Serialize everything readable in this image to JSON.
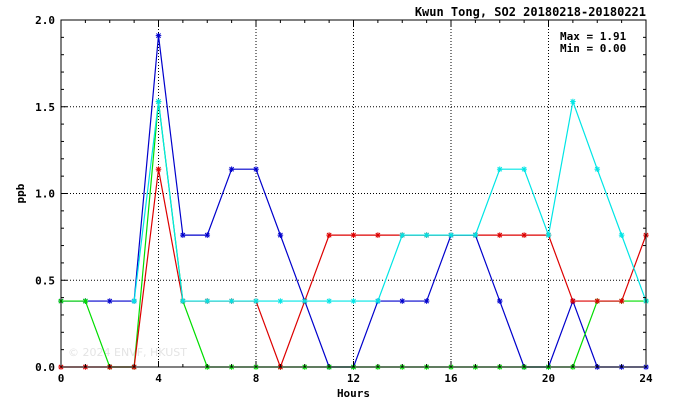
{
  "chart_data": {
    "type": "line",
    "title": "Kwun Tong, SO2 20180218-20180221",
    "xlabel": "Hours",
    "ylabel": "ppb",
    "xlim": [
      0,
      24
    ],
    "ylim": [
      0,
      2.0
    ],
    "xticks": [
      "0",
      "4",
      "8",
      "12",
      "16",
      "20",
      "24"
    ],
    "yticks": [
      "0.0",
      "0.5",
      "1.0",
      "1.5",
      "2.0"
    ],
    "grid": true,
    "stats": {
      "max": "Max = 1.91",
      "min": "Min = 0.00"
    },
    "watermark": "© 2024 ENVF, HKUST",
    "x": [
      0,
      1,
      2,
      3,
      4,
      5,
      6,
      7,
      8,
      9,
      10,
      11,
      12,
      13,
      14,
      15,
      16,
      17,
      18,
      19,
      20,
      21,
      22,
      23,
      24
    ],
    "series": [
      {
        "color": "#0000cc",
        "values": [
          0.38,
          0.38,
          0.38,
          0.38,
          1.91,
          0.76,
          0.76,
          1.14,
          1.14,
          0.76,
          0.38,
          0.0,
          0.0,
          0.38,
          0.38,
          0.38,
          0.76,
          0.76,
          0.38,
          0.0,
          0.0,
          0.38,
          0.0,
          0.0,
          0.0
        ]
      },
      {
        "color": "#00dd00",
        "values": [
          0.38,
          0.38,
          0.0,
          0.0,
          1.53,
          0.38,
          0.0,
          0.0,
          0.0,
          0.0,
          0.0,
          0.0,
          0.0,
          0.0,
          0.0,
          0.0,
          0.0,
          0.0,
          0.0,
          0.0,
          0.0,
          0.0,
          0.38,
          0.38,
          0.38
        ]
      },
      {
        "color": "#dd0000",
        "values": [
          0.0,
          0.0,
          0.0,
          0.0,
          1.14,
          0.38,
          0.38,
          0.38,
          0.38,
          0.0,
          0.38,
          0.76,
          0.76,
          0.76,
          0.76,
          0.76,
          0.76,
          0.76,
          0.76,
          0.76,
          0.76,
          0.38,
          0.38,
          0.38,
          0.76
        ]
      },
      {
        "color": "#00e5e5",
        "values": [
          null,
          null,
          null,
          0.38,
          1.53,
          0.38,
          0.38,
          0.38,
          0.38,
          0.38,
          0.38,
          0.38,
          0.38,
          0.38,
          0.76,
          0.76,
          0.76,
          0.76,
          1.14,
          1.14,
          0.76,
          1.53,
          1.14,
          0.76,
          0.38
        ]
      }
    ]
  }
}
